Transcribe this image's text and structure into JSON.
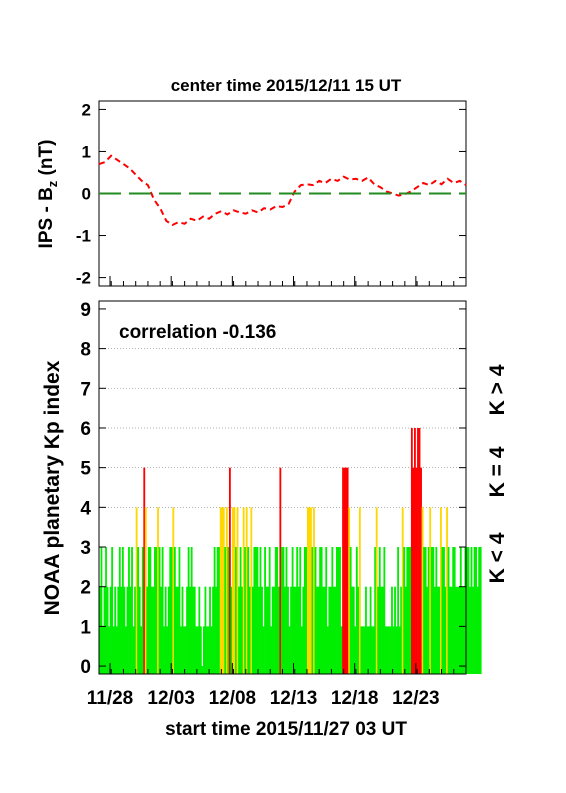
{
  "header": {
    "title": "center time 2015/12/11 15 UT"
  },
  "footer": {
    "xlabel": "start time 2015/11/27 03 UT"
  },
  "legend": {
    "high": {
      "label": "K > 4",
      "color": "#ff0000"
    },
    "mid": {
      "label": "K = 4",
      "color": "#ffd700"
    },
    "low": {
      "label": "K < 4",
      "color": "#00ee00"
    }
  },
  "chart_data": [
    {
      "type": "line",
      "title": "center time 2015/12/11 15 UT",
      "ylabel": "IPS - B",
      "ylabel_subscript": "z",
      "ylabel_unit": "(nT)",
      "ylim": [
        -2.2,
        2.2
      ],
      "yticks": [
        "2",
        "1",
        "0",
        "-1",
        "-2"
      ],
      "xlim_days": [
        0,
        30
      ],
      "series": [
        {
          "style": "dashed",
          "color": "#ff0000",
          "x": [
            0,
            0.5,
            1,
            1.5,
            2,
            2.5,
            3,
            3.5,
            4,
            4.5,
            5,
            5.5,
            6,
            6.5,
            7,
            7.5,
            8,
            8.5,
            9,
            9.5,
            10,
            10.5,
            11,
            11.5,
            12,
            12.5,
            13,
            13.5,
            14,
            14.5,
            15,
            15.5,
            16,
            16.5,
            17,
            17.5,
            18,
            18.5,
            19,
            19.5,
            20,
            20.5,
            21,
            21.5,
            22,
            22.5,
            23,
            23.5,
            24,
            24.5,
            25,
            25.5,
            26,
            26.5,
            27,
            27.5,
            28,
            28.5,
            29,
            29.5,
            30
          ],
          "y": [
            0.7,
            0.75,
            0.9,
            0.8,
            0.7,
            0.6,
            0.45,
            0.3,
            0.2,
            -0.15,
            -0.35,
            -0.65,
            -0.75,
            -0.68,
            -0.72,
            -0.6,
            -0.65,
            -0.55,
            -0.6,
            -0.48,
            -0.42,
            -0.5,
            -0.4,
            -0.45,
            -0.48,
            -0.4,
            -0.45,
            -0.35,
            -0.38,
            -0.3,
            -0.32,
            -0.25,
            0.05,
            0.2,
            0.22,
            0.2,
            0.3,
            0.25,
            0.35,
            0.3,
            0.4,
            0.33,
            0.35,
            0.3,
            0.38,
            0.22,
            0.15,
            0.05,
            0.0,
            -0.05,
            -0.02,
            0.05,
            0.15,
            0.25,
            0.2,
            0.3,
            0.22,
            0.35,
            0.25,
            0.3,
            0.2
          ]
        },
        {
          "style": "dashed",
          "color": "#228b22",
          "x": [
            0,
            30
          ],
          "y": [
            0,
            0
          ]
        }
      ]
    },
    {
      "type": "bar",
      "annotation": "correlation -0.136",
      "ylabel": "NOAA planetary Kp index",
      "ylim": [
        -0.2,
        9.2
      ],
      "yticks": [
        "0",
        "1",
        "2",
        "3",
        "4",
        "5",
        "6",
        "7",
        "8",
        "9"
      ],
      "grid_y": [
        4,
        5,
        6,
        7,
        8
      ],
      "xticks": [
        {
          "label": "11/28",
          "day": 0.9
        },
        {
          "label": "12/03",
          "day": 5.9
        },
        {
          "label": "12/08",
          "day": 10.9
        },
        {
          "label": "12/13",
          "day": 15.9
        },
        {
          "label": "12/18",
          "day": 20.9
        },
        {
          "label": "12/23",
          "day": 25.9
        }
      ],
      "xlim_days": [
        0,
        30
      ],
      "bin_hours": 3,
      "kp": [
        2,
        3,
        1,
        2,
        3,
        2,
        1,
        2,
        3,
        1,
        2,
        1,
        2,
        3,
        2,
        3,
        2,
        1,
        2,
        3,
        2,
        3,
        1,
        2,
        4,
        3,
        2,
        1,
        3,
        5,
        4,
        2,
        3,
        3,
        2,
        2,
        3,
        3,
        4,
        3,
        2,
        3,
        1,
        2,
        1,
        2,
        3,
        3,
        4,
        3,
        2,
        2,
        3,
        1,
        2,
        1,
        1,
        2,
        3,
        2,
        3,
        2,
        2,
        1,
        1,
        2,
        1,
        0,
        1,
        2,
        1,
        1,
        2,
        1,
        2,
        3,
        2,
        3,
        3,
        4,
        4,
        4,
        3,
        4,
        3,
        5,
        2,
        4,
        4,
        3,
        4,
        2,
        3,
        2,
        4,
        3,
        4,
        3,
        2,
        4,
        2,
        3,
        3,
        3,
        2,
        3,
        2,
        1,
        3,
        2,
        2,
        3,
        1,
        2,
        2,
        3,
        3,
        2,
        5,
        3,
        3,
        2,
        3,
        2,
        1,
        2,
        3,
        2,
        2,
        3,
        2,
        3,
        1,
        2,
        3,
        3,
        4,
        4,
        4,
        3,
        4,
        3,
        2,
        2,
        3,
        3,
        2,
        2,
        3,
        1,
        2,
        2,
        3,
        2,
        2,
        3,
        3,
        3,
        1,
        5,
        5,
        5,
        5,
        4,
        3,
        2,
        2,
        1,
        3,
        2,
        4,
        1,
        1,
        1,
        2,
        1,
        1,
        2,
        1,
        1,
        3,
        4,
        2,
        3,
        2,
        2,
        3,
        1,
        1,
        1,
        1,
        2,
        1,
        2,
        1,
        3,
        1,
        2,
        4,
        3,
        2,
        3,
        3,
        3,
        6,
        5,
        6,
        5,
        6,
        6,
        5,
        4,
        3,
        3,
        2,
        3,
        4,
        3,
        3,
        2,
        3,
        2,
        2,
        4,
        3,
        3,
        2,
        4,
        3,
        2,
        2,
        3,
        3,
        2,
        2,
        2,
        3,
        2,
        2,
        3,
        3,
        3,
        2,
        3,
        2,
        3,
        3,
        2,
        3,
        3
      ]
    }
  ]
}
